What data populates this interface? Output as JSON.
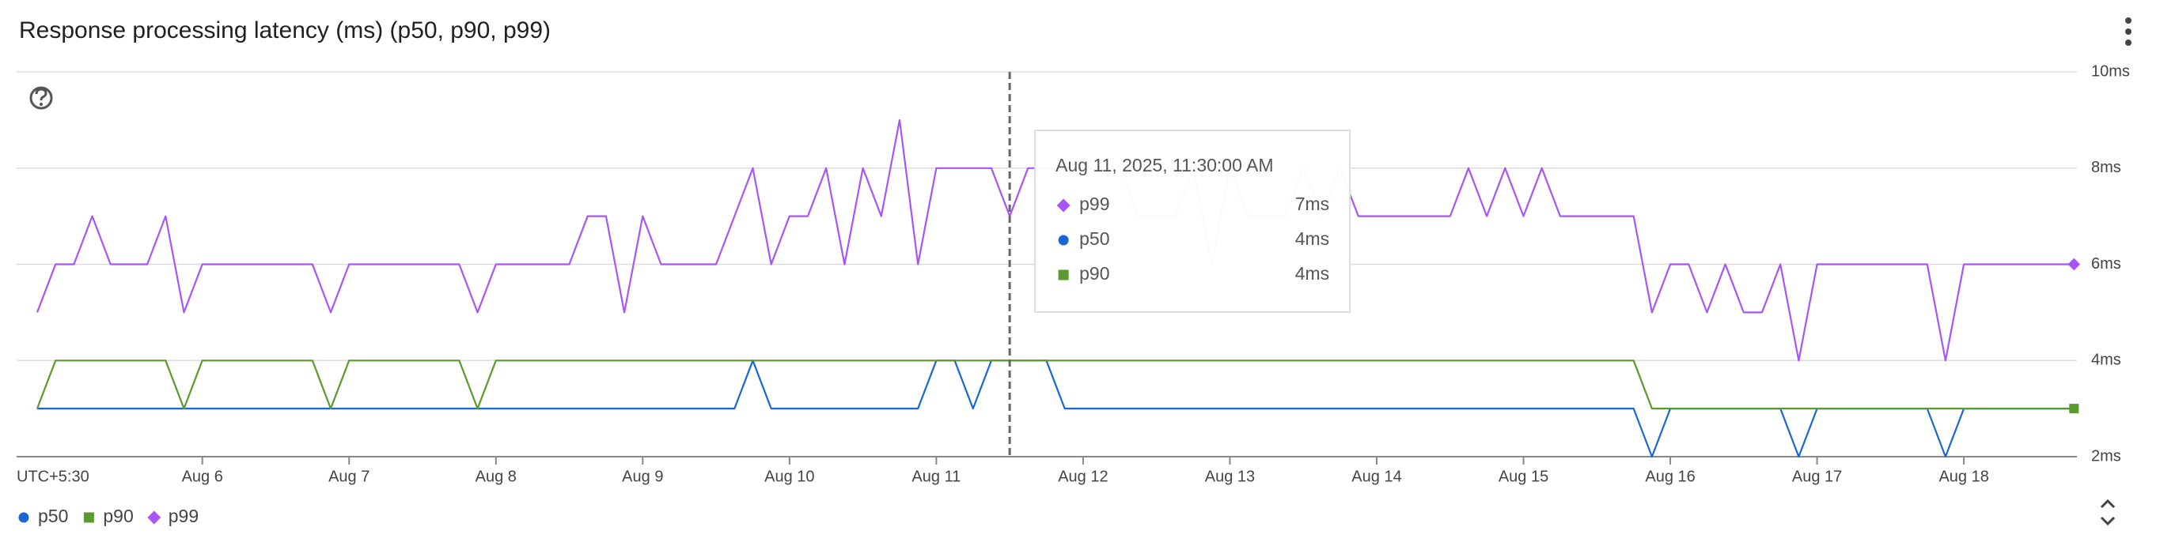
{
  "chart_data": {
    "type": "line",
    "title": "Response processing latency (ms) (p50, p90, p99)",
    "timezone_label": "UTC+5:30",
    "x": [
      4.875,
      5,
      5.125,
      5.25,
      5.375,
      5.5,
      5.625,
      5.75,
      5.875,
      6,
      6.125,
      6.25,
      6.375,
      6.5,
      6.625,
      6.75,
      6.875,
      7,
      7.125,
      7.25,
      7.375,
      7.5,
      7.625,
      7.75,
      7.875,
      8,
      8.125,
      8.25,
      8.375,
      8.5,
      8.625,
      8.75,
      8.875,
      9,
      9.125,
      9.25,
      9.375,
      9.5,
      9.625,
      9.75,
      9.875,
      10,
      10.125,
      10.25,
      10.375,
      10.5,
      10.625,
      10.75,
      10.875,
      11,
      11.125,
      11.25,
      11.375,
      11.5,
      11.625,
      11.75,
      11.875,
      12,
      12.125,
      12.25,
      12.375,
      12.5,
      12.625,
      12.75,
      12.875,
      13,
      13.125,
      13.25,
      13.375,
      13.5,
      13.625,
      13.75,
      13.875,
      14,
      14.125,
      14.25,
      14.375,
      14.5,
      14.625,
      14.75,
      14.875,
      15,
      15.125,
      15.25,
      15.375,
      15.5,
      15.625,
      15.75,
      15.875,
      16,
      16.125,
      16.25,
      16.375,
      16.5,
      16.625,
      16.75,
      16.875,
      17,
      17.125,
      17.25,
      17.375,
      17.5,
      17.625,
      17.75,
      17.875,
      18,
      18.125,
      18.25,
      18.375,
      18.5,
      18.625,
      18.75
    ],
    "xlim": [
      4.735,
      18.77
    ],
    "xticks": [
      {
        "value": 6,
        "label": "Aug 6"
      },
      {
        "value": 7,
        "label": "Aug 7"
      },
      {
        "value": 8,
        "label": "Aug 8"
      },
      {
        "value": 9,
        "label": "Aug 9"
      },
      {
        "value": 10,
        "label": "Aug 10"
      },
      {
        "value": 11,
        "label": "Aug 11"
      },
      {
        "value": 12,
        "label": "Aug 12"
      },
      {
        "value": 13,
        "label": "Aug 13"
      },
      {
        "value": 14,
        "label": "Aug 14"
      },
      {
        "value": 15,
        "label": "Aug 15"
      },
      {
        "value": 16,
        "label": "Aug 16"
      },
      {
        "value": 17,
        "label": "Aug 17"
      },
      {
        "value": 18,
        "label": "Aug 18"
      }
    ],
    "ylim": [
      2,
      10
    ],
    "yticks": [
      {
        "value": 2,
        "label": "2ms"
      },
      {
        "value": 4,
        "label": "4ms"
      },
      {
        "value": 6,
        "label": "6ms"
      },
      {
        "value": 8,
        "label": "8ms"
      },
      {
        "value": 10,
        "label": "10ms"
      }
    ],
    "grid": true,
    "series": [
      {
        "name": "p50",
        "color": "#1a67d2",
        "marker": "circle",
        "values": [
          3,
          3,
          3,
          3,
          3,
          3,
          3,
          3,
          3,
          3,
          3,
          3,
          3,
          3,
          3,
          3,
          3,
          3,
          3,
          3,
          3,
          3,
          3,
          3,
          3,
          3,
          3,
          3,
          3,
          3,
          3,
          3,
          3,
          3,
          3,
          3,
          3,
          3,
          3,
          4,
          3,
          3,
          3,
          3,
          3,
          3,
          3,
          3,
          3,
          4,
          4,
          3,
          4,
          4,
          4,
          4,
          3,
          3,
          3,
          3,
          3,
          3,
          3,
          3,
          3,
          3,
          3,
          3,
          3,
          3,
          3,
          3,
          3,
          3,
          3,
          3,
          3,
          3,
          3,
          3,
          3,
          3,
          3,
          3,
          3,
          3,
          3,
          3,
          2,
          3,
          3,
          3,
          3,
          3,
          3,
          3,
          2,
          3,
          3,
          3,
          3,
          3,
          3,
          3,
          2,
          3,
          3,
          3,
          3,
          3,
          3,
          3
        ]
      },
      {
        "name": "p90",
        "color": "#5a9a2e",
        "marker": "square",
        "values": [
          3,
          4,
          4,
          4,
          4,
          4,
          4,
          4,
          3,
          4,
          4,
          4,
          4,
          4,
          4,
          4,
          3,
          4,
          4,
          4,
          4,
          4,
          4,
          4,
          3,
          4,
          4,
          4,
          4,
          4,
          4,
          4,
          4,
          4,
          4,
          4,
          4,
          4,
          4,
          4,
          4,
          4,
          4,
          4,
          4,
          4,
          4,
          4,
          4,
          4,
          4,
          4,
          4,
          4,
          4,
          4,
          4,
          4,
          4,
          4,
          4,
          4,
          4,
          4,
          4,
          4,
          4,
          4,
          4,
          4,
          4,
          4,
          4,
          4,
          4,
          4,
          4,
          4,
          4,
          4,
          4,
          4,
          4,
          4,
          4,
          4,
          4,
          4,
          3,
          3,
          3,
          3,
          3,
          3,
          3,
          3,
          3,
          3,
          3,
          3,
          3,
          3,
          3,
          3,
          3,
          3,
          3,
          3,
          3,
          3,
          3,
          3
        ]
      },
      {
        "name": "p99",
        "color": "#a855f7",
        "marker": "diamond",
        "values": [
          5,
          6,
          6,
          7,
          6,
          6,
          6,
          7,
          5,
          6,
          6,
          6,
          6,
          6,
          6,
          6,
          5,
          6,
          6,
          6,
          6,
          6,
          6,
          6,
          5,
          6,
          6,
          6,
          6,
          6,
          7,
          7,
          5,
          7,
          6,
          6,
          6,
          6,
          7,
          8,
          6,
          7,
          7,
          8,
          6,
          8,
          7,
          9,
          6,
          8,
          8,
          8,
          8,
          7,
          8,
          8,
          8,
          8,
          8,
          8,
          7,
          7,
          7,
          8,
          6,
          8,
          7,
          7,
          7,
          8,
          7,
          8,
          7,
          7,
          7,
          7,
          7,
          7,
          8,
          7,
          8,
          7,
          8,
          7,
          7,
          7,
          7,
          7,
          5,
          6,
          6,
          5,
          6,
          5,
          5,
          6,
          4,
          6,
          6,
          6,
          6,
          6,
          6,
          6,
          4,
          6,
          6,
          6,
          6,
          6,
          6,
          6
        ]
      }
    ],
    "tooltip": {
      "x": 11.5,
      "title": "Aug 11, 2025, 11:30:00 AM",
      "entries": [
        {
          "name": "p99",
          "value": 7,
          "label": "7ms"
        },
        {
          "name": "p50",
          "value": 4,
          "label": "4ms"
        },
        {
          "name": "p90",
          "value": 4,
          "label": "4ms"
        }
      ]
    }
  }
}
